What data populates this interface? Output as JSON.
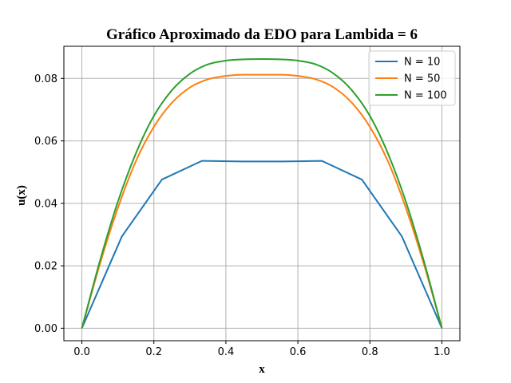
{
  "chart_data": {
    "type": "line",
    "title": "Gráfico Aproximado da EDO para Lambida = 6",
    "xlabel": "x",
    "ylabel": "u(x)",
    "xlim": [
      -0.05,
      1.05
    ],
    "ylim": [
      -0.004,
      0.0903
    ],
    "xticks": [
      0.0,
      0.2,
      0.4,
      0.6,
      0.8,
      1.0
    ],
    "xtick_labels": [
      "0.0",
      "0.2",
      "0.4",
      "0.6",
      "0.8",
      "1.0"
    ],
    "yticks": [
      0.0,
      0.02,
      0.04,
      0.06,
      0.08
    ],
    "ytick_labels": [
      "0.00",
      "0.02",
      "0.04",
      "0.06",
      "0.08"
    ],
    "grid": true,
    "legend_position": "top-right",
    "series": [
      {
        "name": "N = 10",
        "color": "#1f77b4",
        "x": [
          0.0,
          0.1111,
          0.2222,
          0.3333,
          0.4444,
          0.5556,
          0.6667,
          0.7778,
          0.8889,
          1.0
        ],
        "y": [
          0.0,
          0.0294,
          0.0476,
          0.0536,
          0.0534,
          0.0534,
          0.0536,
          0.0476,
          0.0294,
          0.0
        ]
      },
      {
        "name": "N = 50",
        "color": "#ff7f0e",
        "x": [
          0.0,
          0.05,
          0.1,
          0.15,
          0.2,
          0.25,
          0.3,
          0.35,
          0.4,
          0.45,
          0.5,
          0.55,
          0.6,
          0.65,
          0.7,
          0.75,
          0.8,
          0.85,
          0.9,
          0.95,
          1.0
        ],
        "y": [
          0.0,
          0.0205,
          0.0385,
          0.0535,
          0.0645,
          0.0722,
          0.0771,
          0.0797,
          0.0808,
          0.0812,
          0.0812,
          0.0812,
          0.0808,
          0.0797,
          0.0771,
          0.0722,
          0.0645,
          0.0535,
          0.0385,
          0.0205,
          0.0
        ]
      },
      {
        "name": "N = 100",
        "color": "#2ca02c",
        "x": [
          0.0,
          0.05,
          0.1,
          0.15,
          0.2,
          0.25,
          0.3,
          0.35,
          0.4,
          0.45,
          0.5,
          0.55,
          0.6,
          0.65,
          0.7,
          0.75,
          0.8,
          0.85,
          0.9,
          0.95,
          1.0
        ],
        "y": [
          0.0,
          0.0215,
          0.0405,
          0.056,
          0.068,
          0.0762,
          0.0815,
          0.0845,
          0.0857,
          0.0861,
          0.0862,
          0.0861,
          0.0857,
          0.0845,
          0.0815,
          0.0762,
          0.068,
          0.056,
          0.0405,
          0.0215,
          0.0
        ]
      }
    ]
  }
}
